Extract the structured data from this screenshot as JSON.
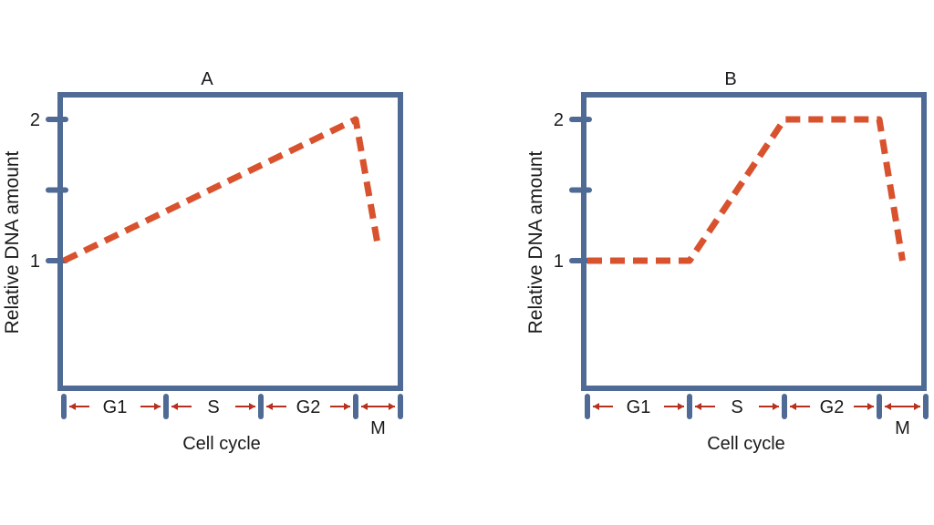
{
  "colors": {
    "frame": "#4f6a94",
    "line": "#d9522e",
    "arrow": "#b8301e",
    "text": "#1a1a1a"
  },
  "chart_data": [
    {
      "type": "line",
      "title": "A",
      "xlabel": "Cell cycle",
      "ylabel": "Relative DNA amount",
      "ylim": [
        0.5,
        2.2
      ],
      "yticks": [
        1,
        1.5,
        2
      ],
      "ytick_labels": [
        "1",
        "",
        "2"
      ],
      "phases": [
        "G1",
        "S",
        "G2",
        "M"
      ],
      "xlim": [
        0,
        4
      ],
      "series": [
        {
          "x": [
            0,
            3,
            3.5
          ],
          "y": [
            1,
            2,
            1.1
          ],
          "style": "dashed"
        }
      ]
    },
    {
      "type": "line",
      "title": "B",
      "xlabel": "Cell cycle",
      "ylabel": "Relative DNA amount",
      "ylim": [
        0.5,
        2.2
      ],
      "yticks": [
        1,
        1.5,
        2
      ],
      "ytick_labels": [
        "1",
        "",
        "2"
      ],
      "phases": [
        "G1",
        "S",
        "G2",
        "M"
      ],
      "xlim": [
        0,
        4
      ],
      "series": [
        {
          "x": [
            0,
            1,
            2,
            3,
            3.5
          ],
          "y": [
            1,
            1,
            2,
            2,
            1
          ],
          "style": "dashed"
        }
      ]
    }
  ]
}
